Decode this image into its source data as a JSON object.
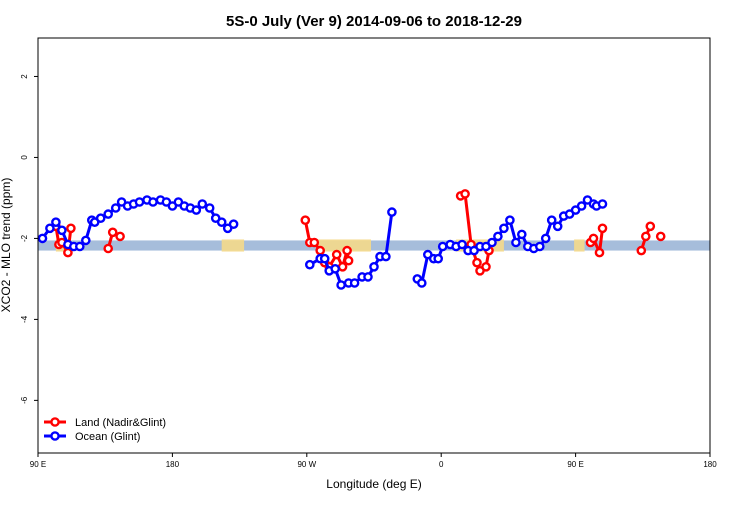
{
  "chart_data": {
    "type": "line",
    "title": "5S-0 July (Ver 9)   2014-09-06 to 2018-12-29",
    "xlabel": "Longitude (deg E)",
    "ylabel": "XCO2 - MLO trend (ppm)",
    "xlim": [
      90,
      540
    ],
    "ylim": [
      -7.3,
      2.95
    ],
    "x_ticks": [
      {
        "value": 90,
        "label": "90 E"
      },
      {
        "value": 180,
        "label": "180"
      },
      {
        "value": 270,
        "label": "90 W"
      },
      {
        "value": 360,
        "label": "0"
      },
      {
        "value": 450,
        "label": "90 E"
      },
      {
        "value": 540,
        "label": "180"
      }
    ],
    "y_ticks": [
      {
        "value": 2,
        "label": "2"
      },
      {
        "value": 0,
        "label": "0"
      },
      {
        "value": -2,
        "label": "-2"
      },
      {
        "value": -4,
        "label": "-4"
      },
      {
        "value": -6,
        "label": "-6"
      }
    ],
    "grid": false,
    "legend_position": "bottom-left",
    "reference_band": {
      "y_min": -2.3,
      "y_max": -2.05,
      "color": "#a6bddb"
    },
    "land_shading": {
      "color": "#f5d98a",
      "ranges": [
        [
          102,
          110
        ],
        [
          213,
          228
        ],
        [
          277,
          313
        ],
        [
          370,
          402
        ],
        [
          449,
          456
        ]
      ]
    },
    "series": [
      {
        "name": "Land (Nadir&Glint)",
        "color": "#ff0000",
        "segments": [
          [
            [
              102,
              -1.7
            ],
            [
              104,
              -2.15
            ],
            [
              106,
              -2.1
            ],
            [
              110,
              -2.35
            ],
            [
              112,
              -1.75
            ]
          ],
          [
            [
              137,
              -2.25
            ],
            [
              140,
              -1.85
            ]
          ],
          [
            [
              145,
              -1.95
            ]
          ],
          [
            [
              269,
              -1.55
            ],
            [
              272,
              -2.1
            ],
            [
              275,
              -2.1
            ],
            [
              279,
              -2.3
            ],
            [
              282,
              -2.6
            ],
            [
              285,
              -2.7
            ],
            [
              290,
              -2.4
            ],
            [
              294,
              -2.7
            ],
            [
              297,
              -2.3
            ],
            [
              298,
              -2.55
            ]
          ],
          [
            [
              373,
              -0.95
            ],
            [
              376,
              -0.9
            ],
            [
              380,
              -2.15
            ],
            [
              384,
              -2.6
            ],
            [
              386,
              -2.8
            ],
            [
              390,
              -2.7
            ],
            [
              392,
              -2.3
            ]
          ],
          [
            [
              460,
              -2.1
            ],
            [
              462,
              -2.0
            ],
            [
              466,
              -2.35
            ],
            [
              468,
              -1.75
            ]
          ],
          [
            [
              494,
              -2.3
            ],
            [
              497,
              -1.95
            ],
            [
              500,
              -1.7
            ]
          ],
          [
            [
              507,
              -1.95
            ]
          ]
        ]
      },
      {
        "name": "Ocean (Glint)",
        "color": "#0000ff",
        "segments": [
          [
            [
              93,
              -2.0
            ],
            [
              98,
              -1.75
            ],
            [
              102,
              -1.6
            ],
            [
              106,
              -1.8
            ],
            [
              110,
              -2.15
            ],
            [
              114,
              -2.2
            ],
            [
              118,
              -2.2
            ],
            [
              122,
              -2.05
            ],
            [
              126,
              -1.55
            ],
            [
              128,
              -1.6
            ],
            [
              132,
              -1.5
            ],
            [
              137,
              -1.4
            ],
            [
              142,
              -1.25
            ],
            [
              146,
              -1.1
            ],
            [
              150,
              -1.2
            ],
            [
              154,
              -1.15
            ],
            [
              158,
              -1.1
            ],
            [
              163,
              -1.05
            ],
            [
              167,
              -1.1
            ],
            [
              172,
              -1.05
            ],
            [
              176,
              -1.1
            ],
            [
              180,
              -1.2
            ],
            [
              184,
              -1.1
            ],
            [
              188,
              -1.2
            ],
            [
              192,
              -1.25
            ],
            [
              196,
              -1.3
            ],
            [
              200,
              -1.15
            ],
            [
              205,
              -1.25
            ],
            [
              209,
              -1.5
            ],
            [
              213,
              -1.6
            ],
            [
              217,
              -1.75
            ],
            [
              221,
              -1.65
            ]
          ],
          [
            [
              272,
              -2.65
            ],
            [
              279,
              -2.5
            ],
            [
              282,
              -2.5
            ],
            [
              285,
              -2.8
            ],
            [
              289,
              -2.75
            ],
            [
              293,
              -3.15
            ],
            [
              298,
              -3.1
            ],
            [
              302,
              -3.1
            ],
            [
              307,
              -2.95
            ],
            [
              311,
              -2.95
            ],
            [
              315,
              -2.7
            ],
            [
              319,
              -2.45
            ],
            [
              323,
              -2.45
            ],
            [
              327,
              -1.35
            ]
          ],
          [
            [
              344,
              -3.0
            ],
            [
              347,
              -3.1
            ],
            [
              351,
              -2.4
            ],
            [
              355,
              -2.5
            ],
            [
              358,
              -2.5
            ],
            [
              361,
              -2.2
            ],
            [
              366,
              -2.15
            ],
            [
              370,
              -2.2
            ],
            [
              374,
              -2.15
            ],
            [
              378,
              -2.3
            ],
            [
              382,
              -2.3
            ],
            [
              386,
              -2.2
            ],
            [
              390,
              -2.2
            ],
            [
              394,
              -2.1
            ],
            [
              398,
              -1.95
            ],
            [
              402,
              -1.75
            ],
            [
              406,
              -1.55
            ],
            [
              410,
              -2.1
            ],
            [
              414,
              -1.9
            ],
            [
              418,
              -2.2
            ],
            [
              422,
              -2.25
            ],
            [
              426,
              -2.2
            ],
            [
              430,
              -2.0
            ],
            [
              434,
              -1.55
            ],
            [
              438,
              -1.7
            ],
            [
              442,
              -1.45
            ],
            [
              446,
              -1.4
            ],
            [
              450,
              -1.3
            ],
            [
              454,
              -1.2
            ],
            [
              458,
              -1.05
            ],
            [
              462,
              -1.15
            ]
          ],
          [
            [
              464,
              -1.2
            ],
            [
              468,
              -1.15
            ]
          ]
        ]
      }
    ]
  }
}
